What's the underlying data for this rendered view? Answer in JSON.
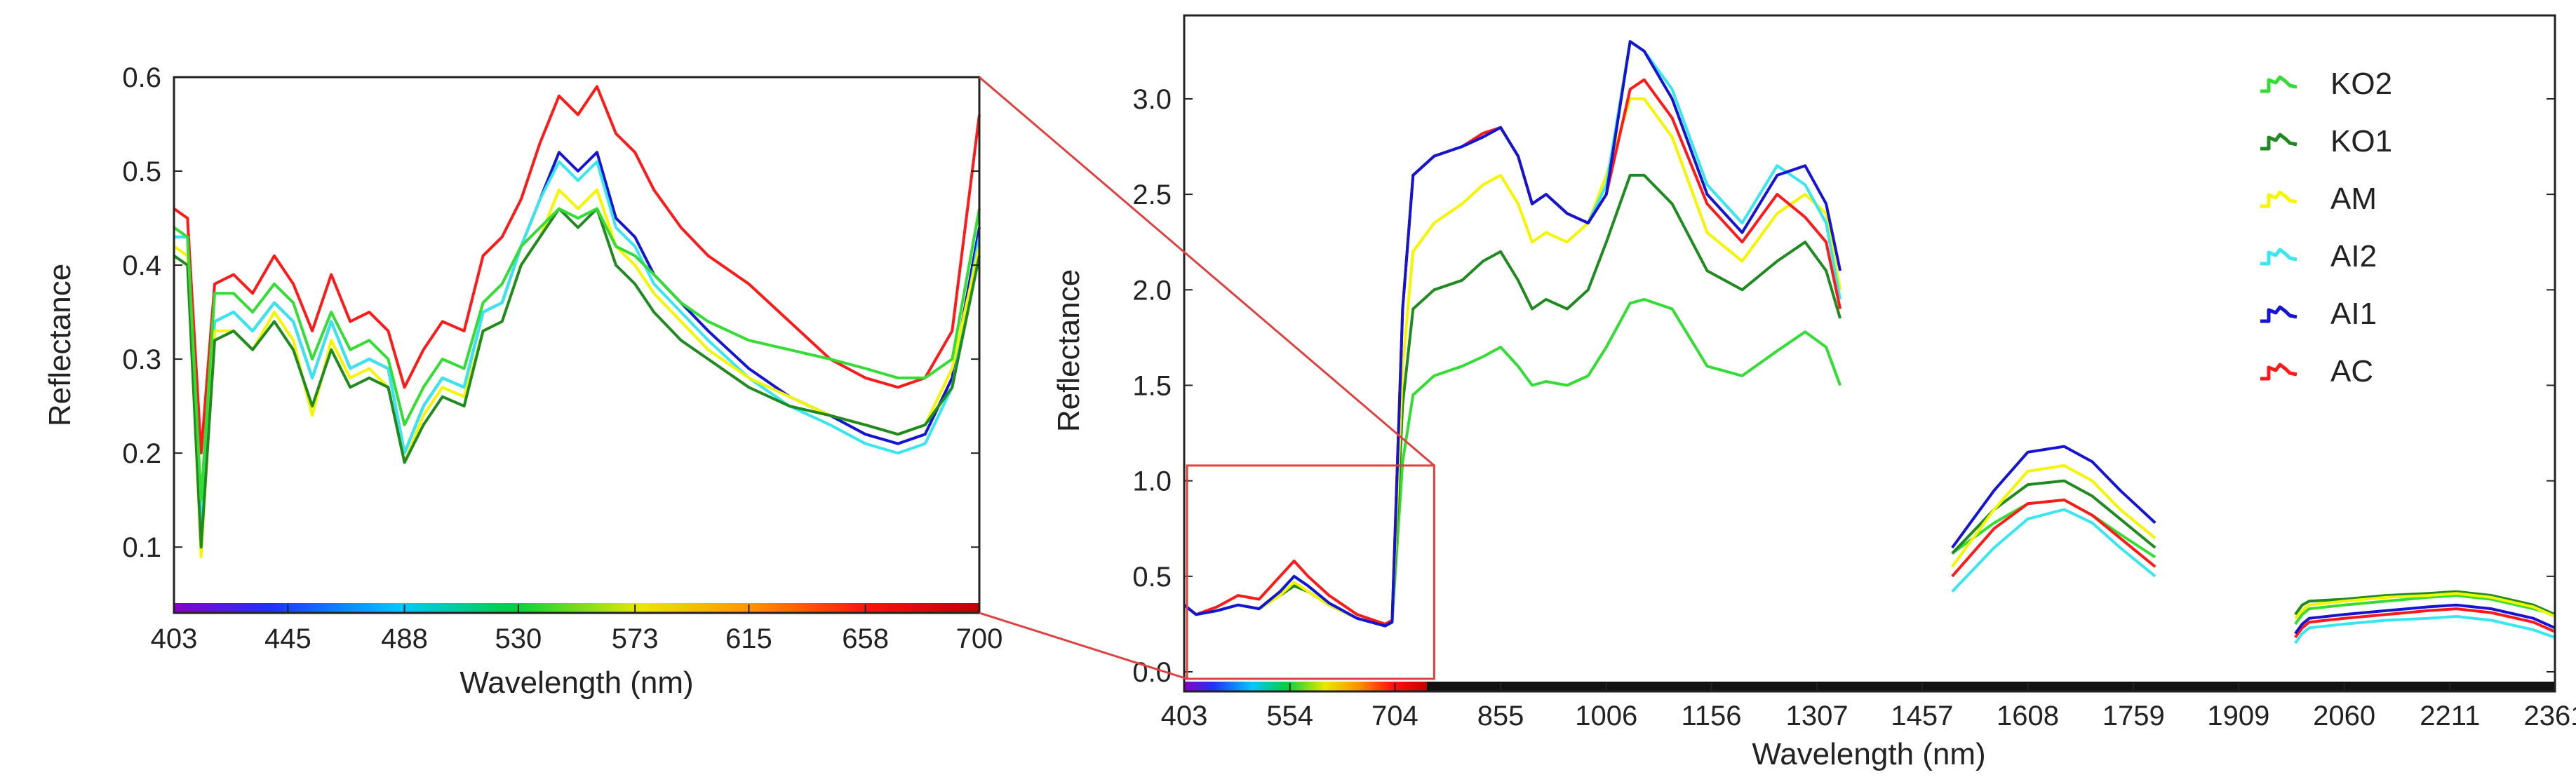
{
  "colors": {
    "AC": "#ff1a1a",
    "AI1": "#1414d2",
    "AI2": "#38e6f0",
    "AM": "#f5f500",
    "KO1": "#1f8a1f",
    "KO2": "#33dd33",
    "zoom_box": "#e04040"
  },
  "chart_data": [
    {
      "type": "line",
      "title": "",
      "xlabel": "Wavelength (nm)",
      "ylabel": "Reflectance",
      "xlim": [
        403,
        700
      ],
      "ylim": [
        0.03,
        0.6
      ],
      "xticks": [
        "403",
        "445",
        "488",
        "530",
        "573",
        "615",
        "658",
        "700"
      ],
      "yticks": [
        "0.1",
        "0.2",
        "0.3",
        "0.4",
        "0.5",
        "0.6"
      ],
      "x": [
        403,
        408,
        413,
        418,
        425,
        432,
        440,
        447,
        454,
        461,
        468,
        475,
        482,
        488,
        495,
        502,
        510,
        517,
        524,
        531,
        538,
        545,
        552,
        559,
        566,
        573,
        580,
        590,
        600,
        615,
        630,
        645,
        658,
        670,
        680,
        690,
        700
      ],
      "series": [
        {
          "name": "AC",
          "values": [
            0.46,
            0.45,
            0.2,
            0.38,
            0.39,
            0.37,
            0.41,
            0.38,
            0.33,
            0.39,
            0.34,
            0.35,
            0.33,
            0.27,
            0.31,
            0.34,
            0.33,
            0.41,
            0.43,
            0.47,
            0.53,
            0.58,
            0.56,
            0.59,
            0.54,
            0.52,
            0.48,
            0.44,
            0.41,
            0.38,
            0.34,
            0.3,
            0.28,
            0.27,
            0.28,
            0.33,
            0.56
          ]
        },
        {
          "name": "AI1",
          "values": [
            0.43,
            0.43,
            0.13,
            0.34,
            0.35,
            0.33,
            0.36,
            0.34,
            0.28,
            0.34,
            0.29,
            0.3,
            0.29,
            0.2,
            0.25,
            0.28,
            0.27,
            0.35,
            0.36,
            0.42,
            0.47,
            0.52,
            0.5,
            0.52,
            0.45,
            0.43,
            0.39,
            0.36,
            0.33,
            0.29,
            0.26,
            0.24,
            0.22,
            0.21,
            0.22,
            0.28,
            0.44
          ]
        },
        {
          "name": "AI2",
          "values": [
            0.43,
            0.43,
            0.13,
            0.34,
            0.35,
            0.33,
            0.36,
            0.34,
            0.28,
            0.34,
            0.29,
            0.3,
            0.29,
            0.2,
            0.25,
            0.28,
            0.27,
            0.35,
            0.36,
            0.42,
            0.47,
            0.51,
            0.49,
            0.51,
            0.44,
            0.42,
            0.38,
            0.35,
            0.32,
            0.28,
            0.25,
            0.23,
            0.21,
            0.2,
            0.21,
            0.27,
            0.43
          ]
        },
        {
          "name": "AM",
          "values": [
            0.42,
            0.41,
            0.09,
            0.33,
            0.33,
            0.31,
            0.35,
            0.32,
            0.24,
            0.32,
            0.28,
            0.29,
            0.27,
            0.19,
            0.24,
            0.27,
            0.26,
            0.33,
            0.34,
            0.4,
            0.43,
            0.48,
            0.46,
            0.48,
            0.42,
            0.4,
            0.37,
            0.34,
            0.31,
            0.28,
            0.26,
            0.24,
            0.23,
            0.22,
            0.23,
            0.29,
            0.42
          ]
        },
        {
          "name": "KO1",
          "values": [
            0.41,
            0.4,
            0.1,
            0.32,
            0.33,
            0.31,
            0.34,
            0.31,
            0.25,
            0.31,
            0.27,
            0.28,
            0.27,
            0.19,
            0.23,
            0.26,
            0.25,
            0.33,
            0.34,
            0.4,
            0.43,
            0.46,
            0.44,
            0.46,
            0.4,
            0.38,
            0.35,
            0.32,
            0.3,
            0.27,
            0.25,
            0.24,
            0.23,
            0.22,
            0.23,
            0.27,
            0.41
          ]
        },
        {
          "name": "KO2",
          "values": [
            0.44,
            0.43,
            0.15,
            0.37,
            0.37,
            0.35,
            0.38,
            0.36,
            0.3,
            0.35,
            0.31,
            0.32,
            0.3,
            0.23,
            0.27,
            0.3,
            0.29,
            0.36,
            0.38,
            0.42,
            0.44,
            0.46,
            0.45,
            0.46,
            0.42,
            0.41,
            0.39,
            0.36,
            0.34,
            0.32,
            0.31,
            0.3,
            0.29,
            0.28,
            0.28,
            0.3,
            0.46
          ]
        }
      ]
    },
    {
      "type": "line",
      "title": "",
      "xlabel": "Wavelength (nm)",
      "ylabel": "Reflectance",
      "xlim": [
        403,
        2361
      ],
      "ylim": [
        0,
        3.4
      ],
      "xticks": [
        "403",
        "554",
        "704",
        "855",
        "1006",
        "1156",
        "1307",
        "1457",
        "1608",
        "1759",
        "1909",
        "2060",
        "2211",
        "2361"
      ],
      "yticks": [
        "0.0",
        "0.5",
        "1.0",
        "1.5",
        "2.0",
        "2.5",
        "3.0"
      ],
      "legend": "top-right",
      "zoom_range": {
        "x": [
          403,
          700
        ],
        "y": [
          0,
          1.08
        ]
      },
      "segments": [
        {
          "x": [
            403,
            420,
            450,
            480,
            510,
            540,
            560,
            580,
            610,
            650,
            690,
            700,
            715,
            730,
            760,
            800,
            830,
            855,
            880,
            900,
            920,
            950,
            980,
            1006,
            1040,
            1060,
            1100,
            1150,
            1200,
            1250,
            1290,
            1320,
            1340
          ]
        },
        {
          "x": [
            1500,
            1560,
            1608,
            1660,
            1700,
            1740,
            1790
          ]
        },
        {
          "x": [
            1990,
            2000,
            2010,
            2060,
            2120,
            2180,
            2220,
            2270,
            2330,
            2361
          ]
        }
      ],
      "series": [
        {
          "name": "KO2",
          "values": [
            [
              0.35,
              0.3,
              0.32,
              0.35,
              0.33,
              0.4,
              0.45,
              0.42,
              0.35,
              0.28,
              0.24,
              0.26,
              1.1,
              1.45,
              1.55,
              1.6,
              1.65,
              1.7,
              1.6,
              1.5,
              1.52,
              1.5,
              1.55,
              1.7,
              1.93,
              1.95,
              1.9,
              1.6,
              1.55,
              1.68,
              1.78,
              1.7,
              1.5
            ],
            [
              0.62,
              0.78,
              0.88,
              0.9,
              0.82,
              0.72,
              0.6
            ],
            [
              0.25,
              0.3,
              0.33,
              0.35,
              0.37,
              0.39,
              0.4,
              0.38,
              0.33,
              0.3
            ]
          ]
        },
        {
          "name": "KO1",
          "values": [
            [
              0.35,
              0.3,
              0.32,
              0.35,
              0.33,
              0.4,
              0.45,
              0.42,
              0.35,
              0.28,
              0.24,
              0.26,
              1.4,
              1.9,
              2.0,
              2.05,
              2.15,
              2.2,
              2.05,
              1.9,
              1.95,
              1.9,
              2.0,
              2.25,
              2.6,
              2.6,
              2.45,
              2.1,
              2.0,
              2.15,
              2.25,
              2.1,
              1.85
            ],
            [
              0.62,
              0.85,
              0.98,
              1.0,
              0.92,
              0.8,
              0.65
            ],
            [
              0.3,
              0.35,
              0.37,
              0.38,
              0.4,
              0.41,
              0.42,
              0.4,
              0.35,
              0.3
            ]
          ]
        },
        {
          "name": "AM",
          "values": [
            [
              0.35,
              0.3,
              0.32,
              0.35,
              0.33,
              0.4,
              0.47,
              0.42,
              0.35,
              0.28,
              0.24,
              0.26,
              1.6,
              2.2,
              2.35,
              2.45,
              2.55,
              2.6,
              2.45,
              2.25,
              2.3,
              2.25,
              2.35,
              2.6,
              3.0,
              3.0,
              2.8,
              2.3,
              2.15,
              2.4,
              2.5,
              2.4,
              2.0
            ],
            [
              0.55,
              0.85,
              1.05,
              1.08,
              1.0,
              0.85,
              0.7
            ],
            [
              0.28,
              0.32,
              0.35,
              0.37,
              0.39,
              0.4,
              0.41,
              0.39,
              0.34,
              0.29
            ]
          ]
        },
        {
          "name": "AI2",
          "values": [
            [
              0.35,
              0.3,
              0.32,
              0.35,
              0.33,
              0.42,
              0.5,
              0.45,
              0.36,
              0.28,
              0.24,
              0.26,
              1.9,
              2.6,
              2.7,
              2.75,
              2.8,
              2.85,
              2.7,
              2.45,
              2.5,
              2.4,
              2.35,
              2.55,
              3.3,
              3.25,
              3.05,
              2.55,
              2.35,
              2.65,
              2.55,
              2.35,
              1.95
            ],
            [
              0.42,
              0.65,
              0.8,
              0.85,
              0.78,
              0.65,
              0.5
            ],
            [
              0.15,
              0.2,
              0.23,
              0.25,
              0.27,
              0.28,
              0.29,
              0.27,
              0.22,
              0.18
            ]
          ]
        },
        {
          "name": "AI1",
          "values": [
            [
              0.35,
              0.3,
              0.32,
              0.35,
              0.33,
              0.42,
              0.5,
              0.45,
              0.36,
              0.28,
              0.24,
              0.26,
              1.9,
              2.6,
              2.7,
              2.75,
              2.8,
              2.85,
              2.7,
              2.45,
              2.5,
              2.4,
              2.35,
              2.5,
              3.3,
              3.25,
              3.0,
              2.5,
              2.3,
              2.6,
              2.65,
              2.45,
              2.1
            ],
            [
              0.65,
              0.95,
              1.15,
              1.18,
              1.1,
              0.95,
              0.78
            ],
            [
              0.2,
              0.25,
              0.28,
              0.3,
              0.32,
              0.34,
              0.35,
              0.33,
              0.28,
              0.23
            ]
          ]
        },
        {
          "name": "AC",
          "values": [
            [
              0.35,
              0.3,
              0.34,
              0.4,
              0.38,
              0.5,
              0.58,
              0.5,
              0.4,
              0.3,
              0.25,
              0.27,
              1.9,
              2.6,
              2.7,
              2.75,
              2.82,
              2.85,
              2.7,
              2.45,
              2.5,
              2.4,
              2.35,
              2.5,
              3.05,
              3.1,
              2.9,
              2.45,
              2.25,
              2.5,
              2.38,
              2.25,
              1.9
            ],
            [
              0.5,
              0.75,
              0.88,
              0.9,
              0.82,
              0.7,
              0.55
            ],
            [
              0.18,
              0.23,
              0.26,
              0.28,
              0.3,
              0.32,
              0.33,
              0.31,
              0.26,
              0.21
            ]
          ]
        }
      ],
      "legend_entries": [
        "KO2",
        "KO1",
        "AM",
        "AI2",
        "AI1",
        "AC"
      ]
    }
  ]
}
